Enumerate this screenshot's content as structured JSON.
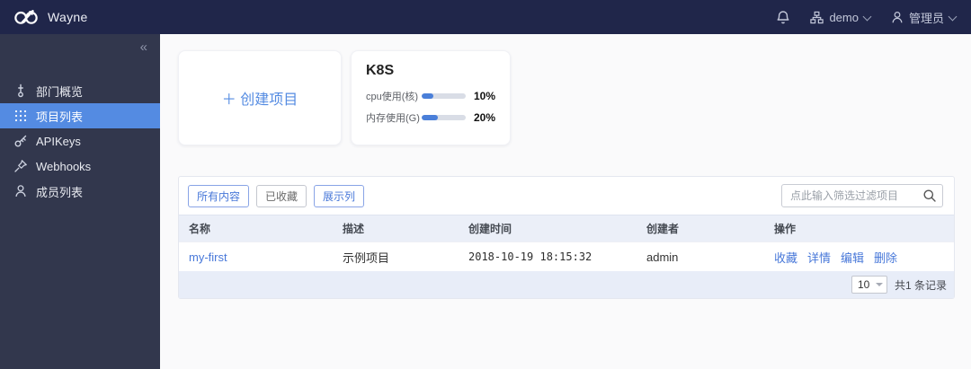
{
  "header": {
    "brand": "Wayne",
    "org": "demo",
    "user": "管理员"
  },
  "sidebar": {
    "collapse_icon": "«",
    "items": [
      {
        "label": "部门概览",
        "icon": "overview-icon",
        "active": false
      },
      {
        "label": "项目列表",
        "icon": "project-grid-icon",
        "active": true
      },
      {
        "label": "APIKeys",
        "icon": "key-icon",
        "active": false
      },
      {
        "label": "Webhooks",
        "icon": "pushpin-icon",
        "active": false
      },
      {
        "label": "成员列表",
        "icon": "member-icon",
        "active": false
      }
    ]
  },
  "main": {
    "create_card": {
      "label": "＋ 创建项目"
    },
    "cluster_card": {
      "title": "K8S",
      "metrics": [
        {
          "label": "cpu使用(核)",
          "percent": 10,
          "percent_label": "10%"
        },
        {
          "label": "内存使用(G)",
          "percent": 20,
          "percent_label": "20%"
        }
      ]
    },
    "toolbar": {
      "filters": [
        {
          "label": "所有内容",
          "style": "primary"
        },
        {
          "label": "已收藏",
          "style": "default"
        },
        {
          "label": "展示列",
          "style": "primary"
        }
      ],
      "search_placeholder": "点此输入筛选过滤项目"
    },
    "table": {
      "columns": [
        "名称",
        "描述",
        "创建时间",
        "创建者",
        "操作"
      ],
      "rows": [
        {
          "name": "my-first",
          "description": "示例项目",
          "created_at": "2018-10-19 18:15:32",
          "creator": "admin",
          "actions": [
            "收藏",
            "详情",
            "编辑",
            "删除"
          ]
        }
      ]
    },
    "pagination": {
      "page_size": "10",
      "total_text": "共1 条记录"
    }
  },
  "colors": {
    "accent": "#548be2",
    "link": "#4878d9",
    "header_bg": "#20264a",
    "sidebar_bg": "#32374d"
  }
}
